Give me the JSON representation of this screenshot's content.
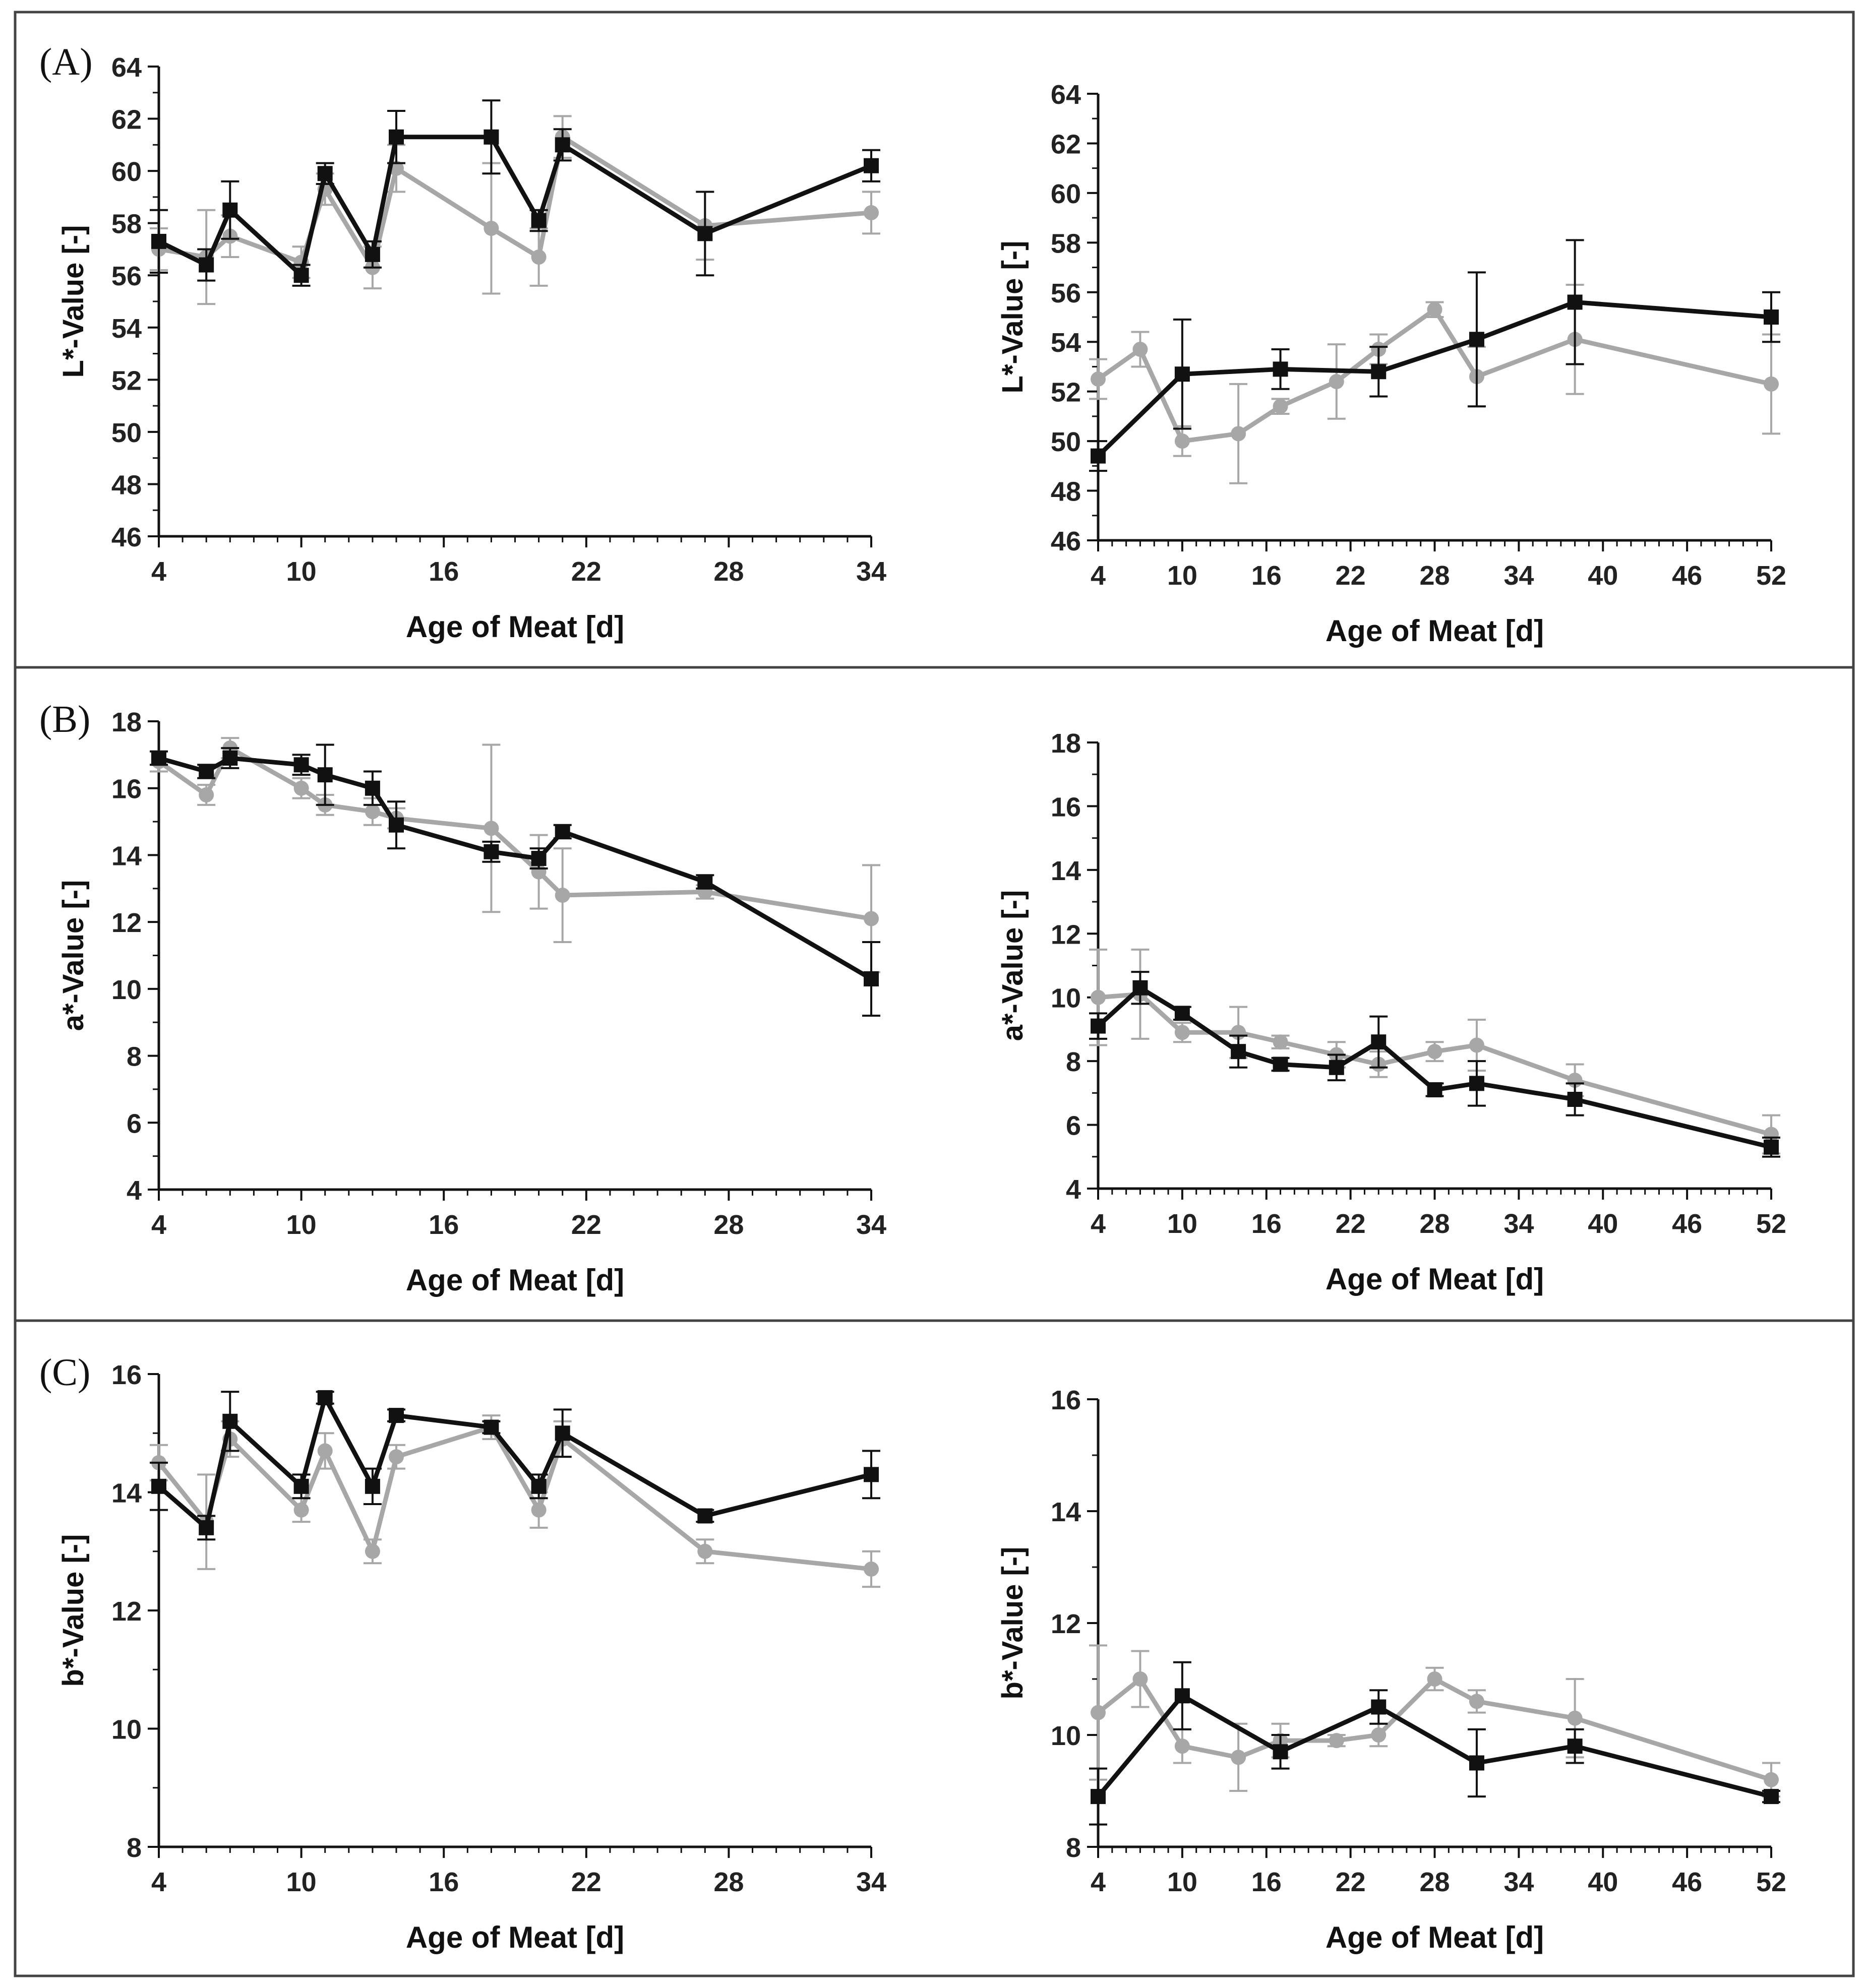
{
  "figure": {
    "colors": {
      "series_black": "#111111",
      "series_gray": "#a7a7a7",
      "frame": "#444444",
      "axis": "#111111"
    },
    "panels": [
      {
        "label": "(A)"
      },
      {
        "label": "(B)"
      },
      {
        "label": "(C)"
      }
    ]
  },
  "chart_data": [
    {
      "type": "line",
      "id": "A-left",
      "panel": "A",
      "xlabel": "Age of Meat [d]",
      "ylabel": "L*-Value [-]",
      "xlim": [
        4,
        34
      ],
      "ylim": [
        46,
        64
      ],
      "xticks": [
        4,
        10,
        16,
        22,
        28,
        34
      ],
      "yticks": [
        46,
        48,
        50,
        52,
        54,
        56,
        58,
        60,
        62,
        64
      ],
      "series": [
        {
          "name": "black",
          "marker": "square",
          "x": [
            4,
            6,
            7,
            10,
            11,
            13,
            14,
            18,
            20,
            21,
            27,
            34
          ],
          "y": [
            57.3,
            56.4,
            58.5,
            56.0,
            59.9,
            56.8,
            61.3,
            61.3,
            58.1,
            61.0,
            57.6,
            60.2
          ],
          "err": [
            1.2,
            0.6,
            1.1,
            0.4,
            0.4,
            0.5,
            1.0,
            1.4,
            0.4,
            0.6,
            1.6,
            0.6
          ]
        },
        {
          "name": "gray",
          "marker": "circle",
          "x": [
            4,
            6,
            7,
            10,
            11,
            13,
            14,
            18,
            20,
            21,
            27,
            34
          ],
          "y": [
            57.0,
            56.7,
            57.5,
            56.5,
            59.3,
            56.3,
            60.1,
            57.8,
            56.7,
            61.3,
            57.9,
            58.4
          ],
          "err": [
            0.8,
            1.8,
            0.8,
            0.6,
            0.6,
            0.8,
            0.9,
            2.5,
            1.1,
            0.8,
            1.3,
            0.8
          ]
        }
      ]
    },
    {
      "type": "line",
      "id": "A-right",
      "panel": "A",
      "xlabel": "Age of Meat [d]",
      "ylabel": "L*-Value [-]",
      "xlim": [
        4,
        52
      ],
      "ylim": [
        46,
        64
      ],
      "xticks": [
        4,
        10,
        16,
        22,
        28,
        34,
        40,
        46,
        52
      ],
      "yticks": [
        46,
        48,
        50,
        52,
        54,
        56,
        58,
        60,
        62,
        64
      ],
      "series": [
        {
          "name": "black",
          "marker": "square",
          "x": [
            4,
            10,
            17,
            24,
            31,
            38,
            52
          ],
          "y": [
            49.4,
            52.7,
            52.9,
            52.8,
            54.1,
            55.6,
            55.0
          ],
          "err": [
            0.6,
            2.2,
            0.8,
            1.0,
            2.7,
            2.5,
            1.0
          ]
        },
        {
          "name": "gray",
          "marker": "circle",
          "x": [
            4,
            7,
            10,
            14,
            17,
            21,
            24,
            28,
            31,
            38,
            52
          ],
          "y": [
            52.5,
            53.7,
            50.0,
            50.3,
            51.4,
            52.4,
            53.7,
            55.3,
            52.6,
            54.1,
            52.3
          ],
          "err": [
            0.8,
            0.7,
            0.6,
            2.0,
            0.3,
            1.5,
            0.6,
            0.3,
            1.2,
            2.2,
            2.0
          ]
        }
      ]
    },
    {
      "type": "line",
      "id": "B-left",
      "panel": "B",
      "xlabel": "Age of Meat [d]",
      "ylabel": "a*-Value [-]",
      "xlim": [
        4,
        34
      ],
      "ylim": [
        4,
        18
      ],
      "xticks": [
        4,
        10,
        16,
        22,
        28,
        34
      ],
      "yticks": [
        4,
        6,
        8,
        10,
        12,
        14,
        16,
        18
      ],
      "series": [
        {
          "name": "black",
          "marker": "square",
          "x": [
            4,
            6,
            7,
            10,
            11,
            13,
            14,
            18,
            20,
            21,
            27,
            34
          ],
          "y": [
            16.9,
            16.5,
            16.9,
            16.7,
            16.4,
            16.0,
            14.9,
            14.1,
            13.9,
            14.7,
            13.2,
            10.3
          ],
          "err": [
            0.2,
            0.2,
            0.3,
            0.3,
            0.9,
            0.5,
            0.7,
            0.3,
            0.3,
            0.2,
            0.2,
            1.1
          ]
        },
        {
          "name": "gray",
          "marker": "circle",
          "x": [
            4,
            6,
            7,
            10,
            11,
            13,
            14,
            18,
            20,
            21,
            27,
            34
          ],
          "y": [
            16.8,
            15.8,
            17.2,
            16.0,
            15.5,
            15.3,
            15.1,
            14.8,
            13.5,
            12.8,
            12.9,
            12.1
          ],
          "err": [
            0.3,
            0.3,
            0.3,
            0.3,
            0.3,
            0.4,
            0.3,
            2.5,
            1.1,
            1.4,
            0.2,
            1.6
          ]
        }
      ]
    },
    {
      "type": "line",
      "id": "B-right",
      "panel": "B",
      "xlabel": "Age of Meat [d]",
      "ylabel": "a*-Value [-]",
      "xlim": [
        4,
        52
      ],
      "ylim": [
        4,
        18
      ],
      "xticks": [
        4,
        10,
        16,
        22,
        28,
        34,
        40,
        46,
        52
      ],
      "yticks": [
        4,
        6,
        8,
        10,
        12,
        14,
        16,
        18
      ],
      "series": [
        {
          "name": "black",
          "marker": "square",
          "x": [
            4,
            7,
            10,
            14,
            17,
            21,
            24,
            28,
            31,
            38,
            52
          ],
          "y": [
            9.1,
            10.3,
            9.5,
            8.3,
            7.9,
            7.8,
            8.6,
            7.1,
            7.3,
            6.8,
            5.3
          ],
          "err": [
            0.4,
            0.5,
            0.2,
            0.5,
            0.2,
            0.4,
            0.8,
            0.2,
            0.7,
            0.5,
            0.3
          ]
        },
        {
          "name": "gray",
          "marker": "circle",
          "x": [
            4,
            7,
            10,
            14,
            17,
            21,
            24,
            28,
            31,
            38,
            52
          ],
          "y": [
            10.0,
            10.1,
            8.9,
            8.9,
            8.6,
            8.2,
            7.9,
            8.3,
            8.5,
            7.4,
            5.7
          ],
          "err": [
            1.5,
            1.4,
            0.3,
            0.8,
            0.2,
            0.4,
            0.4,
            0.3,
            0.8,
            0.5,
            0.6
          ]
        }
      ]
    },
    {
      "type": "line",
      "id": "C-left",
      "panel": "C",
      "xlabel": "Age of Meat [d]",
      "ylabel": "b*-Value [-]",
      "xlim": [
        4,
        34
      ],
      "ylim": [
        8,
        16
      ],
      "xticks": [
        4,
        10,
        16,
        22,
        28,
        34
      ],
      "yticks": [
        8,
        10,
        12,
        14,
        16
      ],
      "series": [
        {
          "name": "black",
          "marker": "square",
          "x": [
            4,
            6,
            7,
            10,
            11,
            13,
            14,
            18,
            20,
            21,
            27,
            34
          ],
          "y": [
            14.1,
            13.4,
            15.2,
            14.1,
            15.6,
            14.1,
            15.3,
            15.1,
            14.1,
            15.0,
            13.6,
            14.3
          ],
          "err": [
            0.4,
            0.2,
            0.5,
            0.2,
            0.1,
            0.3,
            0.1,
            0.1,
            0.2,
            0.4,
            0.1,
            0.4
          ]
        },
        {
          "name": "gray",
          "marker": "circle",
          "x": [
            4,
            6,
            7,
            10,
            11,
            13,
            14,
            18,
            20,
            21,
            27,
            34
          ],
          "y": [
            14.5,
            13.5,
            14.9,
            13.7,
            14.7,
            13.0,
            14.6,
            15.1,
            13.7,
            14.9,
            13.0,
            12.7
          ],
          "err": [
            0.3,
            0.8,
            0.3,
            0.2,
            0.3,
            0.2,
            0.2,
            0.2,
            0.3,
            0.3,
            0.2,
            0.3
          ]
        }
      ]
    },
    {
      "type": "line",
      "id": "C-right",
      "panel": "C",
      "xlabel": "Age of Meat [d]",
      "ylabel": "b*-Value [-]",
      "xlim": [
        4,
        52
      ],
      "ylim": [
        8,
        16
      ],
      "xticks": [
        4,
        10,
        16,
        22,
        28,
        34,
        40,
        46,
        52
      ],
      "yticks": [
        8,
        10,
        12,
        14,
        16
      ],
      "series": [
        {
          "name": "black",
          "marker": "square",
          "x": [
            4,
            10,
            17,
            24,
            31,
            38,
            52
          ],
          "y": [
            8.9,
            10.7,
            9.7,
            10.5,
            9.5,
            9.8,
            8.9
          ],
          "err": [
            0.5,
            0.6,
            0.3,
            0.3,
            0.6,
            0.3,
            0.1
          ]
        },
        {
          "name": "gray",
          "marker": "circle",
          "x": [
            4,
            7,
            10,
            14,
            17,
            21,
            24,
            28,
            31,
            38,
            52
          ],
          "y": [
            10.4,
            11.0,
            9.8,
            9.6,
            9.9,
            9.9,
            10.0,
            11.0,
            10.6,
            10.3,
            9.2
          ],
          "err": [
            1.2,
            0.5,
            0.3,
            0.6,
            0.3,
            0.1,
            0.2,
            0.2,
            0.2,
            0.7,
            0.3
          ]
        }
      ]
    }
  ]
}
